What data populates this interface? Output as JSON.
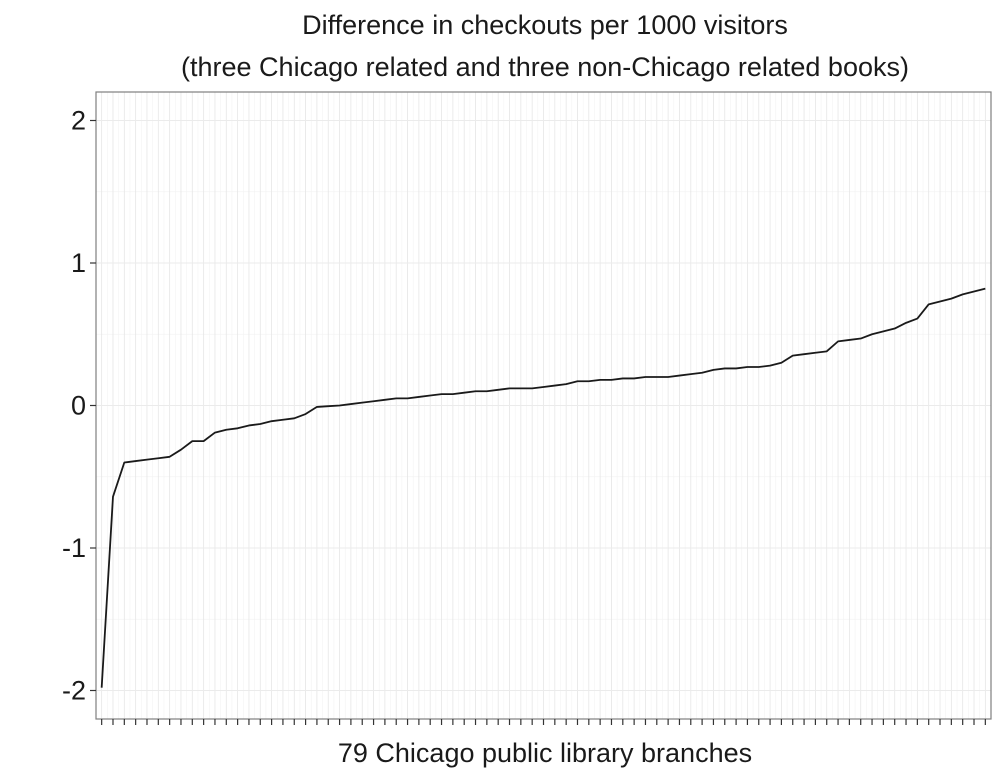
{
  "chart_data": {
    "type": "line",
    "title": "Difference in checkouts per 1000 visitors",
    "subtitle": "(three Chicago related and three non-Chicago related books)",
    "xlabel": "79 Chicago public library branches",
    "ylabel": "",
    "x": [
      1,
      2,
      3,
      4,
      5,
      6,
      7,
      8,
      9,
      10,
      11,
      12,
      13,
      14,
      15,
      16,
      17,
      18,
      19,
      20,
      21,
      22,
      23,
      24,
      25,
      26,
      27,
      28,
      29,
      30,
      31,
      32,
      33,
      34,
      35,
      36,
      37,
      38,
      39,
      40,
      41,
      42,
      43,
      44,
      45,
      46,
      47,
      48,
      49,
      50,
      51,
      52,
      53,
      54,
      55,
      56,
      57,
      58,
      59,
      60,
      61,
      62,
      63,
      64,
      65,
      66,
      67,
      68,
      69,
      70,
      71,
      72,
      73,
      74,
      75,
      76,
      77,
      78,
      79
    ],
    "ylim": [
      -2.2,
      2.2
    ],
    "yticks": [
      -2,
      -1,
      0,
      1,
      2
    ],
    "ytick_labels": [
      "-2",
      "-1",
      "0",
      "1",
      "2"
    ],
    "grid": true,
    "line_color": "#1a1a1a",
    "series": [
      {
        "values": [
          -1.98,
          -0.64,
          -0.4,
          -0.39,
          -0.38,
          -0.37,
          -0.36,
          -0.31,
          -0.25,
          -0.25,
          -0.19,
          -0.17,
          -0.16,
          -0.14,
          -0.13,
          -0.11,
          -0.1,
          -0.09,
          -0.06,
          -0.01,
          -0.005,
          0.0,
          0.01,
          0.02,
          0.03,
          0.04,
          0.05,
          0.05,
          0.06,
          0.07,
          0.08,
          0.08,
          0.09,
          0.1,
          0.1,
          0.11,
          0.12,
          0.12,
          0.12,
          0.13,
          0.14,
          0.15,
          0.17,
          0.17,
          0.18,
          0.18,
          0.19,
          0.19,
          0.2,
          0.2,
          0.2,
          0.21,
          0.22,
          0.23,
          0.25,
          0.26,
          0.26,
          0.27,
          0.27,
          0.28,
          0.3,
          0.35,
          0.36,
          0.37,
          0.38,
          0.45,
          0.46,
          0.47,
          0.5,
          0.52,
          0.54,
          0.58,
          0.61,
          0.71,
          0.73,
          0.75,
          0.78,
          0.8,
          0.82
        ]
      }
    ]
  }
}
